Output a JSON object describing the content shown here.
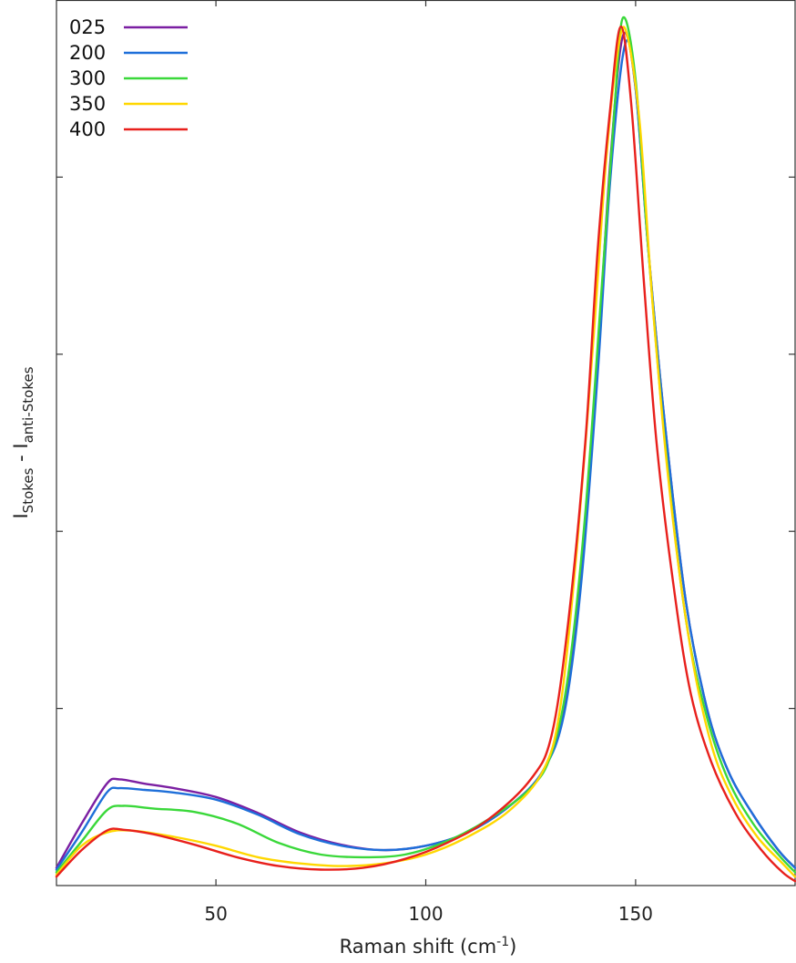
{
  "chart_data": {
    "type": "line",
    "title": "",
    "xlabel": {
      "base": "Raman shift (cm",
      "sup": "-1",
      "end": ")"
    },
    "ylabel": {
      "I1": "I",
      "sub1": "Stokes",
      "mid": " - ",
      "I2": "I",
      "sub2": "anti-Stokes"
    },
    "xlim": [
      12,
      188
    ],
    "ylim": [
      0,
      1.0
    ],
    "x_ticks": [
      50,
      100,
      150
    ],
    "y_ticks": [
      0.2,
      0.4,
      0.6,
      0.8,
      1.0
    ],
    "y_tick_labels_shown": false,
    "grid": false,
    "legend_position": "top-left",
    "series": [
      {
        "name": "025",
        "color": "#7b1fa2",
        "points": [
          [
            12,
            0.02
          ],
          [
            18,
            0.07
          ],
          [
            24,
            0.115
          ],
          [
            27,
            0.12
          ],
          [
            33,
            0.115
          ],
          [
            40,
            0.11
          ],
          [
            50,
            0.1
          ],
          [
            60,
            0.082
          ],
          [
            70,
            0.06
          ],
          [
            80,
            0.046
          ],
          [
            90,
            0.04
          ],
          [
            100,
            0.045
          ],
          [
            110,
            0.06
          ],
          [
            120,
            0.09
          ],
          [
            128,
            0.13
          ],
          [
            133,
            0.2
          ],
          [
            137,
            0.35
          ],
          [
            141,
            0.6
          ],
          [
            144,
            0.82
          ],
          [
            147,
            0.96
          ],
          [
            150,
            0.9
          ],
          [
            153,
            0.72
          ],
          [
            157,
            0.52
          ],
          [
            162,
            0.32
          ],
          [
            167,
            0.2
          ],
          [
            172,
            0.13
          ],
          [
            178,
            0.08
          ],
          [
            184,
            0.04
          ],
          [
            188,
            0.02
          ]
        ]
      },
      {
        "name": "200",
        "color": "#1e6fd9",
        "points": [
          [
            12,
            0.018
          ],
          [
            18,
            0.06
          ],
          [
            24,
            0.105
          ],
          [
            27,
            0.11
          ],
          [
            33,
            0.108
          ],
          [
            40,
            0.105
          ],
          [
            50,
            0.097
          ],
          [
            60,
            0.08
          ],
          [
            70,
            0.058
          ],
          [
            80,
            0.045
          ],
          [
            90,
            0.04
          ],
          [
            100,
            0.045
          ],
          [
            110,
            0.06
          ],
          [
            120,
            0.09
          ],
          [
            128,
            0.13
          ],
          [
            133,
            0.195
          ],
          [
            137,
            0.34
          ],
          [
            141,
            0.58
          ],
          [
            144,
            0.8
          ],
          [
            147.5,
            0.95
          ],
          [
            150,
            0.9
          ],
          [
            153,
            0.72
          ],
          [
            157,
            0.52
          ],
          [
            162,
            0.32
          ],
          [
            167,
            0.2
          ],
          [
            172,
            0.13
          ],
          [
            178,
            0.08
          ],
          [
            184,
            0.04
          ],
          [
            188,
            0.02
          ]
        ]
      },
      {
        "name": "300",
        "color": "#3ad83a",
        "points": [
          [
            12,
            0.015
          ],
          [
            18,
            0.05
          ],
          [
            24,
            0.085
          ],
          [
            28,
            0.09
          ],
          [
            35,
            0.087
          ],
          [
            45,
            0.083
          ],
          [
            55,
            0.07
          ],
          [
            65,
            0.048
          ],
          [
            75,
            0.035
          ],
          [
            85,
            0.032
          ],
          [
            95,
            0.035
          ],
          [
            105,
            0.05
          ],
          [
            115,
            0.075
          ],
          [
            125,
            0.11
          ],
          [
            130,
            0.15
          ],
          [
            134,
            0.24
          ],
          [
            138,
            0.42
          ],
          [
            142,
            0.68
          ],
          [
            145,
            0.88
          ],
          [
            147,
            0.98
          ],
          [
            150,
            0.91
          ],
          [
            153,
            0.72
          ],
          [
            157,
            0.5
          ],
          [
            162,
            0.3
          ],
          [
            167,
            0.19
          ],
          [
            172,
            0.12
          ],
          [
            178,
            0.07
          ],
          [
            184,
            0.035
          ],
          [
            188,
            0.015
          ]
        ]
      },
      {
        "name": "350",
        "color": "#ffd700",
        "points": [
          [
            12,
            0.012
          ],
          [
            18,
            0.045
          ],
          [
            24,
            0.06
          ],
          [
            30,
            0.062
          ],
          [
            40,
            0.055
          ],
          [
            50,
            0.045
          ],
          [
            60,
            0.032
          ],
          [
            70,
            0.025
          ],
          [
            80,
            0.022
          ],
          [
            90,
            0.025
          ],
          [
            100,
            0.035
          ],
          [
            110,
            0.055
          ],
          [
            120,
            0.085
          ],
          [
            128,
            0.13
          ],
          [
            132,
            0.2
          ],
          [
            136,
            0.38
          ],
          [
            140,
            0.62
          ],
          [
            143,
            0.82
          ],
          [
            146,
            0.95
          ],
          [
            148,
            0.96
          ],
          [
            151,
            0.86
          ],
          [
            154,
            0.66
          ],
          [
            158,
            0.45
          ],
          [
            163,
            0.27
          ],
          [
            168,
            0.16
          ],
          [
            173,
            0.1
          ],
          [
            179,
            0.055
          ],
          [
            185,
            0.025
          ],
          [
            188,
            0.01
          ]
        ]
      },
      {
        "name": "400",
        "color": "#e8201c",
        "points": [
          [
            12,
            0.01
          ],
          [
            18,
            0.04
          ],
          [
            24,
            0.062
          ],
          [
            28,
            0.063
          ],
          [
            35,
            0.058
          ],
          [
            45,
            0.046
          ],
          [
            55,
            0.032
          ],
          [
            65,
            0.022
          ],
          [
            75,
            0.018
          ],
          [
            85,
            0.02
          ],
          [
            95,
            0.03
          ],
          [
            105,
            0.048
          ],
          [
            115,
            0.075
          ],
          [
            125,
            0.12
          ],
          [
            130,
            0.17
          ],
          [
            134,
            0.3
          ],
          [
            138,
            0.5
          ],
          [
            141,
            0.72
          ],
          [
            144,
            0.88
          ],
          [
            146.5,
            0.97
          ],
          [
            149,
            0.88
          ],
          [
            152,
            0.68
          ],
          [
            155,
            0.5
          ],
          [
            159,
            0.34
          ],
          [
            163,
            0.22
          ],
          [
            168,
            0.14
          ],
          [
            174,
            0.08
          ],
          [
            180,
            0.04
          ],
          [
            185,
            0.015
          ],
          [
            188,
            0.005
          ]
        ]
      }
    ]
  }
}
